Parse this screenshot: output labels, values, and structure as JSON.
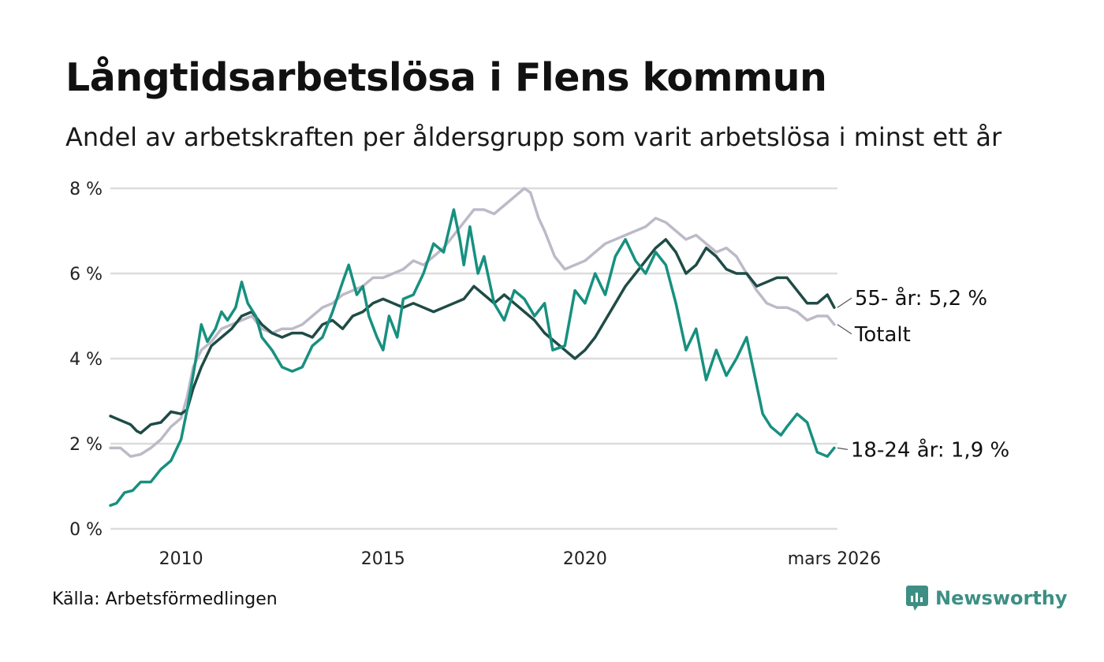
{
  "title": "Långtidsarbetslösa i Flens kommun",
  "subtitle": "Andel av arbetskraften per åldersgrupp som varit arbetslösa i minst ett år",
  "source": "Källa: Arbetsförmedlingen",
  "brand": "Newsworthy",
  "colors": {
    "total": "#bdbac8",
    "age55": "#1f4b45",
    "age18_24": "#17907f",
    "grid": "#dcdcdc",
    "brand": "#3d8f84"
  },
  "chart_data": {
    "type": "line",
    "title": "Långtidsarbetslösa i Flens kommun",
    "xlabel": "",
    "ylabel": "",
    "ylim": [
      0,
      8
    ],
    "xlim": [
      2008.25,
      2026.25
    ],
    "y_ticks": [
      0,
      2,
      4,
      6,
      8
    ],
    "y_tick_labels": [
      "0 %",
      "2 %",
      "4 %",
      "6 %",
      "8 %"
    ],
    "x_ticks": [
      2010,
      2015,
      2020,
      2026.17
    ],
    "x_tick_labels": [
      "2010",
      "2015",
      "2020",
      "mars 2026"
    ],
    "grid": true,
    "series": [
      {
        "name": "Totalt",
        "label": "Totalt",
        "color": "#bdbac8",
        "points": [
          [
            2008.25,
            1.9
          ],
          [
            2008.5,
            1.9
          ],
          [
            2008.75,
            1.7
          ],
          [
            2009.0,
            1.75
          ],
          [
            2009.25,
            1.9
          ],
          [
            2009.5,
            2.1
          ],
          [
            2009.75,
            2.4
          ],
          [
            2010.0,
            2.6
          ],
          [
            2010.15,
            3.1
          ],
          [
            2010.3,
            3.8
          ],
          [
            2010.5,
            4.2
          ],
          [
            2010.75,
            4.4
          ],
          [
            2011.0,
            4.7
          ],
          [
            2011.25,
            4.8
          ],
          [
            2011.5,
            4.9
          ],
          [
            2011.75,
            5.0
          ],
          [
            2012.0,
            4.7
          ],
          [
            2012.25,
            4.6
          ],
          [
            2012.5,
            4.7
          ],
          [
            2012.75,
            4.7
          ],
          [
            2013.0,
            4.8
          ],
          [
            2013.25,
            5.0
          ],
          [
            2013.5,
            5.2
          ],
          [
            2013.75,
            5.3
          ],
          [
            2014.0,
            5.5
          ],
          [
            2014.25,
            5.6
          ],
          [
            2014.5,
            5.7
          ],
          [
            2014.75,
            5.9
          ],
          [
            2015.0,
            5.9
          ],
          [
            2015.25,
            6.0
          ],
          [
            2015.5,
            6.1
          ],
          [
            2015.75,
            6.3
          ],
          [
            2016.0,
            6.2
          ],
          [
            2016.25,
            6.4
          ],
          [
            2016.5,
            6.6
          ],
          [
            2016.75,
            6.9
          ],
          [
            2017.0,
            7.2
          ],
          [
            2017.25,
            7.5
          ],
          [
            2017.5,
            7.5
          ],
          [
            2017.75,
            7.4
          ],
          [
            2018.0,
            7.6
          ],
          [
            2018.25,
            7.8
          ],
          [
            2018.5,
            8.0
          ],
          [
            2018.65,
            7.9
          ],
          [
            2018.85,
            7.3
          ],
          [
            2019.0,
            7.0
          ],
          [
            2019.25,
            6.4
          ],
          [
            2019.5,
            6.1
          ],
          [
            2019.75,
            6.2
          ],
          [
            2020.0,
            6.3
          ],
          [
            2020.25,
            6.5
          ],
          [
            2020.5,
            6.7
          ],
          [
            2020.75,
            6.8
          ],
          [
            2021.0,
            6.9
          ],
          [
            2021.25,
            7.0
          ],
          [
            2021.5,
            7.1
          ],
          [
            2021.75,
            7.3
          ],
          [
            2022.0,
            7.2
          ],
          [
            2022.25,
            7.0
          ],
          [
            2022.5,
            6.8
          ],
          [
            2022.75,
            6.9
          ],
          [
            2023.0,
            6.7
          ],
          [
            2023.25,
            6.5
          ],
          [
            2023.5,
            6.6
          ],
          [
            2023.75,
            6.4
          ],
          [
            2024.0,
            6.0
          ],
          [
            2024.25,
            5.6
          ],
          [
            2024.5,
            5.3
          ],
          [
            2024.75,
            5.2
          ],
          [
            2025.0,
            5.2
          ],
          [
            2025.25,
            5.1
          ],
          [
            2025.5,
            4.9
          ],
          [
            2025.75,
            5.0
          ],
          [
            2026.0,
            5.0
          ],
          [
            2026.17,
            4.8
          ]
        ]
      },
      {
        "name": "55- år",
        "label": "55- år: 5,2 %",
        "color": "#1f4b45",
        "points": [
          [
            2008.25,
            2.65
          ],
          [
            2008.5,
            2.55
          ],
          [
            2008.75,
            2.45
          ],
          [
            2008.9,
            2.3
          ],
          [
            2009.0,
            2.25
          ],
          [
            2009.25,
            2.45
          ],
          [
            2009.5,
            2.5
          ],
          [
            2009.75,
            2.75
          ],
          [
            2010.0,
            2.7
          ],
          [
            2010.15,
            2.8
          ],
          [
            2010.3,
            3.3
          ],
          [
            2010.5,
            3.8
          ],
          [
            2010.75,
            4.3
          ],
          [
            2011.0,
            4.5
          ],
          [
            2011.25,
            4.7
          ],
          [
            2011.5,
            5.0
          ],
          [
            2011.75,
            5.1
          ],
          [
            2012.0,
            4.8
          ],
          [
            2012.25,
            4.6
          ],
          [
            2012.5,
            4.5
          ],
          [
            2012.75,
            4.6
          ],
          [
            2013.0,
            4.6
          ],
          [
            2013.25,
            4.5
          ],
          [
            2013.5,
            4.8
          ],
          [
            2013.75,
            4.9
          ],
          [
            2014.0,
            4.7
          ],
          [
            2014.25,
            5.0
          ],
          [
            2014.5,
            5.1
          ],
          [
            2014.75,
            5.3
          ],
          [
            2015.0,
            5.4
          ],
          [
            2015.25,
            5.3
          ],
          [
            2015.5,
            5.2
          ],
          [
            2015.75,
            5.3
          ],
          [
            2016.0,
            5.2
          ],
          [
            2016.25,
            5.1
          ],
          [
            2016.5,
            5.2
          ],
          [
            2016.75,
            5.3
          ],
          [
            2017.0,
            5.4
          ],
          [
            2017.25,
            5.7
          ],
          [
            2017.5,
            5.5
          ],
          [
            2017.75,
            5.3
          ],
          [
            2018.0,
            5.5
          ],
          [
            2018.25,
            5.3
          ],
          [
            2018.5,
            5.1
          ],
          [
            2018.75,
            4.9
          ],
          [
            2019.0,
            4.6
          ],
          [
            2019.25,
            4.4
          ],
          [
            2019.5,
            4.2
          ],
          [
            2019.75,
            4.0
          ],
          [
            2020.0,
            4.2
          ],
          [
            2020.25,
            4.5
          ],
          [
            2020.5,
            4.9
          ],
          [
            2020.75,
            5.3
          ],
          [
            2021.0,
            5.7
          ],
          [
            2021.25,
            6.0
          ],
          [
            2021.5,
            6.3
          ],
          [
            2021.75,
            6.6
          ],
          [
            2022.0,
            6.8
          ],
          [
            2022.25,
            6.5
          ],
          [
            2022.5,
            6.0
          ],
          [
            2022.75,
            6.2
          ],
          [
            2023.0,
            6.6
          ],
          [
            2023.25,
            6.4
          ],
          [
            2023.5,
            6.1
          ],
          [
            2023.75,
            6.0
          ],
          [
            2024.0,
            6.0
          ],
          [
            2024.25,
            5.7
          ],
          [
            2024.5,
            5.8
          ],
          [
            2024.75,
            5.9
          ],
          [
            2025.0,
            5.9
          ],
          [
            2025.25,
            5.6
          ],
          [
            2025.5,
            5.3
          ],
          [
            2025.75,
            5.3
          ],
          [
            2026.0,
            5.5
          ],
          [
            2026.17,
            5.2
          ]
        ]
      },
      {
        "name": "18-24 år",
        "label": "18-24 år: 1,9 %",
        "color": "#17907f",
        "points": [
          [
            2008.25,
            0.55
          ],
          [
            2008.4,
            0.6
          ],
          [
            2008.6,
            0.85
          ],
          [
            2008.8,
            0.9
          ],
          [
            2009.0,
            1.1
          ],
          [
            2009.25,
            1.1
          ],
          [
            2009.5,
            1.4
          ],
          [
            2009.75,
            1.6
          ],
          [
            2010.0,
            2.1
          ],
          [
            2010.15,
            2.8
          ],
          [
            2010.35,
            3.9
          ],
          [
            2010.5,
            4.8
          ],
          [
            2010.65,
            4.4
          ],
          [
            2010.85,
            4.7
          ],
          [
            2011.0,
            5.1
          ],
          [
            2011.15,
            4.9
          ],
          [
            2011.35,
            5.2
          ],
          [
            2011.5,
            5.8
          ],
          [
            2011.65,
            5.3
          ],
          [
            2011.85,
            5.0
          ],
          [
            2012.0,
            4.5
          ],
          [
            2012.25,
            4.2
          ],
          [
            2012.5,
            3.8
          ],
          [
            2012.75,
            3.7
          ],
          [
            2013.0,
            3.8
          ],
          [
            2013.25,
            4.3
          ],
          [
            2013.5,
            4.5
          ],
          [
            2013.75,
            5.1
          ],
          [
            2014.0,
            5.8
          ],
          [
            2014.15,
            6.2
          ],
          [
            2014.35,
            5.5
          ],
          [
            2014.5,
            5.7
          ],
          [
            2014.65,
            5.0
          ],
          [
            2014.85,
            4.5
          ],
          [
            2015.0,
            4.2
          ],
          [
            2015.15,
            5.0
          ],
          [
            2015.35,
            4.5
          ],
          [
            2015.5,
            5.4
          ],
          [
            2015.75,
            5.5
          ],
          [
            2016.0,
            6.0
          ],
          [
            2016.25,
            6.7
          ],
          [
            2016.5,
            6.5
          ],
          [
            2016.75,
            7.5
          ],
          [
            2016.9,
            6.8
          ],
          [
            2017.0,
            6.2
          ],
          [
            2017.15,
            7.1
          ],
          [
            2017.35,
            6.0
          ],
          [
            2017.5,
            6.4
          ],
          [
            2017.75,
            5.3
          ],
          [
            2018.0,
            4.9
          ],
          [
            2018.25,
            5.6
          ],
          [
            2018.5,
            5.4
          ],
          [
            2018.75,
            5.0
          ],
          [
            2019.0,
            5.3
          ],
          [
            2019.2,
            4.2
          ],
          [
            2019.5,
            4.3
          ],
          [
            2019.75,
            5.6
          ],
          [
            2020.0,
            5.3
          ],
          [
            2020.25,
            6.0
          ],
          [
            2020.5,
            5.5
          ],
          [
            2020.75,
            6.4
          ],
          [
            2021.0,
            6.8
          ],
          [
            2021.25,
            6.3
          ],
          [
            2021.5,
            6.0
          ],
          [
            2021.75,
            6.5
          ],
          [
            2022.0,
            6.2
          ],
          [
            2022.25,
            5.3
          ],
          [
            2022.5,
            4.2
          ],
          [
            2022.75,
            4.7
          ],
          [
            2023.0,
            3.5
          ],
          [
            2023.25,
            4.2
          ],
          [
            2023.5,
            3.6
          ],
          [
            2023.75,
            4.0
          ],
          [
            2024.0,
            4.5
          ],
          [
            2024.2,
            3.6
          ],
          [
            2024.4,
            2.7
          ],
          [
            2024.6,
            2.4
          ],
          [
            2024.85,
            2.2
          ],
          [
            2025.0,
            2.4
          ],
          [
            2025.25,
            2.7
          ],
          [
            2025.5,
            2.5
          ],
          [
            2025.75,
            1.8
          ],
          [
            2026.0,
            1.7
          ],
          [
            2026.17,
            1.9
          ]
        ]
      }
    ]
  }
}
